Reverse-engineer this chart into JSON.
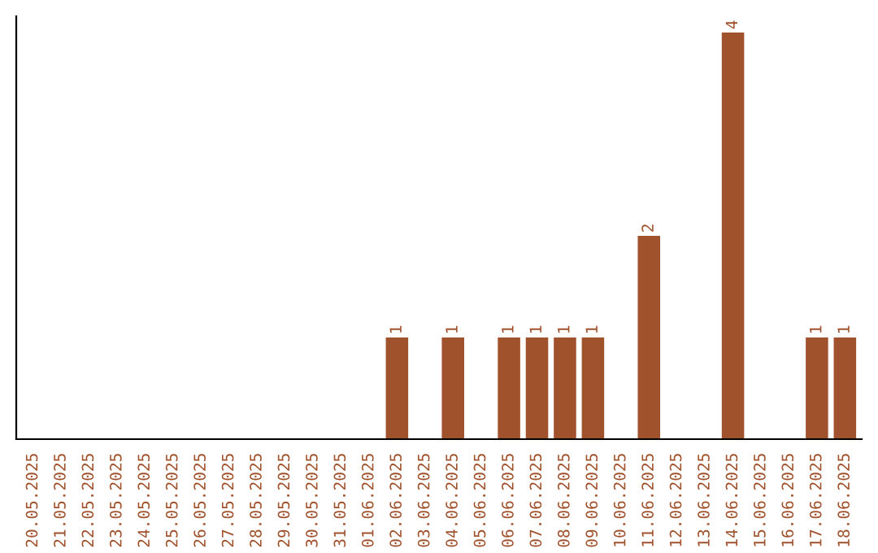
{
  "chart_data": {
    "type": "bar",
    "categories": [
      "20.05.2025",
      "21.05.2025",
      "22.05.2025",
      "23.05.2025",
      "24.05.2025",
      "25.05.2025",
      "26.05.2025",
      "27.05.2025",
      "28.05.2025",
      "29.05.2025",
      "30.05.2025",
      "31.05.2025",
      "01.06.2025",
      "02.06.2025",
      "03.06.2025",
      "04.06.2025",
      "05.06.2025",
      "06.06.2025",
      "07.06.2025",
      "08.06.2025",
      "09.06.2025",
      "10.06.2025",
      "11.06.2025",
      "12.06.2025",
      "13.06.2025",
      "14.06.2025",
      "15.06.2025",
      "16.06.2025",
      "17.06.2025",
      "18.06.2025"
    ],
    "values": [
      null,
      null,
      null,
      null,
      null,
      null,
      null,
      null,
      null,
      null,
      null,
      null,
      null,
      1,
      null,
      1,
      null,
      1,
      1,
      1,
      1,
      null,
      2,
      null,
      null,
      4,
      null,
      null,
      1,
      1
    ],
    "color": "#a0522d",
    "ylim": [
      0,
      4.16
    ],
    "data_labels": true,
    "tick_labels": "x",
    "grid": false,
    "legend": false
  }
}
